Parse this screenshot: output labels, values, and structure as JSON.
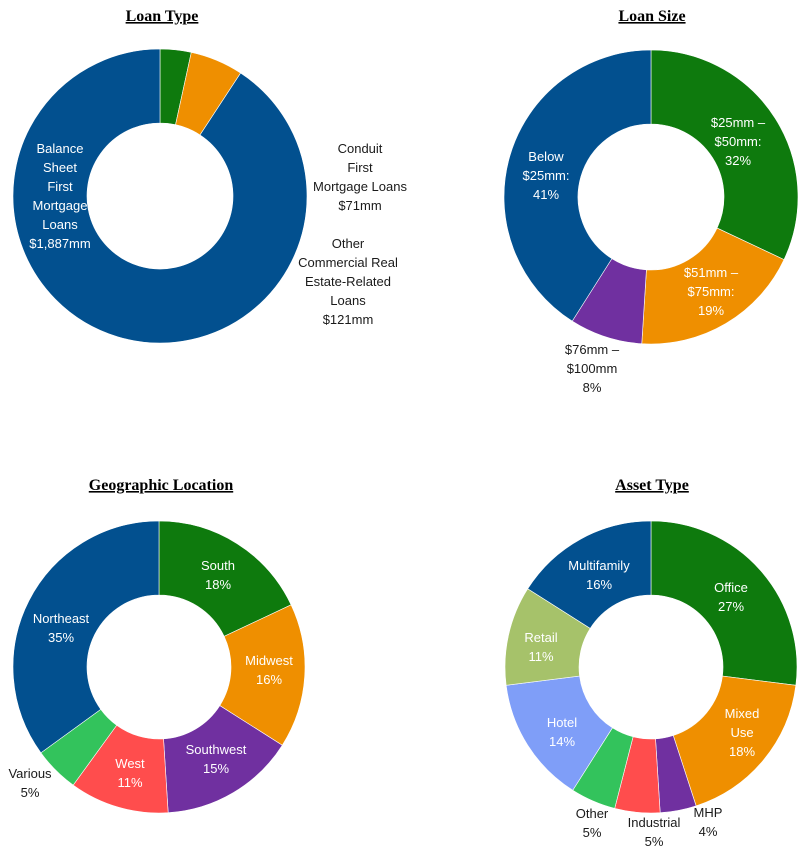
{
  "chart_data": [
    {
      "type": "pie",
      "title": "Loan Type",
      "categories": [
        "Conduit First Mortgage Loans",
        "Other Commercial Real Estate-Related Loans",
        "Balance Sheet First Mortgage Loans"
      ],
      "values": [
        71,
        121,
        1887
      ],
      "unit": "$mm",
      "colors": [
        "#0e7a0d",
        "#ef8f00",
        "#02508f"
      ],
      "labels": [
        [
          "Conduit",
          "First",
          "Mortgage Loans",
          "$71mm"
        ],
        [
          "Other",
          "Commercial Real",
          "Estate-Related",
          "Loans",
          "$121mm"
        ],
        [
          "Balance",
          "Sheet",
          "First",
          "Mortgage",
          "Loans",
          "$1,887mm"
        ]
      ]
    },
    {
      "type": "pie",
      "title": "Loan Size",
      "categories": [
        "$25mm – $50mm",
        "$51mm – $75mm",
        "$76mm – $100mm",
        "Below $25mm"
      ],
      "values": [
        32,
        19,
        8,
        41
      ],
      "unit": "%",
      "colors": [
        "#0e7a0d",
        "#ef8f00",
        "#7030a0",
        "#02508f"
      ],
      "labels": [
        [
          "$25mm –",
          "$50mm:",
          "32%"
        ],
        [
          "$51mm –",
          "$75mm:",
          "19%"
        ],
        [
          "$76mm –",
          "$100mm",
          "8%"
        ],
        [
          "Below",
          "$25mm:",
          "41%"
        ]
      ]
    },
    {
      "type": "pie",
      "title": "Geographic Location",
      "categories": [
        "South",
        "Midwest",
        "Southwest",
        "West",
        "Various",
        "Northeast"
      ],
      "values": [
        18,
        16,
        15,
        11,
        5,
        35
      ],
      "unit": "%",
      "colors": [
        "#0e7a0d",
        "#ef8f00",
        "#7030a0",
        "#ff4d4d",
        "#33c35c",
        "#02508f"
      ],
      "labels": [
        [
          "South",
          "18%"
        ],
        [
          "Midwest",
          "16%"
        ],
        [
          "Southwest",
          "15%"
        ],
        [
          "West",
          "11%"
        ],
        [
          "Various",
          "5%"
        ],
        [
          "Northeast",
          "35%"
        ]
      ]
    },
    {
      "type": "pie",
      "title": "Asset Type",
      "categories": [
        "Office",
        "Mixed Use",
        "MHP",
        "Industrial",
        "Other",
        "Hotel",
        "Retail",
        "Multifamily"
      ],
      "values": [
        27,
        18,
        4,
        5,
        5,
        14,
        11,
        16
      ],
      "unit": "%",
      "colors": [
        "#0e7a0d",
        "#ef8f00",
        "#7030a0",
        "#ff4d4d",
        "#33c35c",
        "#7f9ef8",
        "#a6c26a",
        "#02508f"
      ],
      "labels": [
        [
          "Office",
          "27%"
        ],
        [
          "Mixed",
          "Use",
          "18%"
        ],
        [
          "MHP",
          "4%"
        ],
        [
          "Industrial",
          "5%"
        ],
        [
          "Other",
          "5%"
        ],
        [
          "Hotel",
          "14%"
        ],
        [
          "Retail",
          "11%"
        ],
        [
          "Multifamily",
          "16%"
        ]
      ]
    }
  ]
}
